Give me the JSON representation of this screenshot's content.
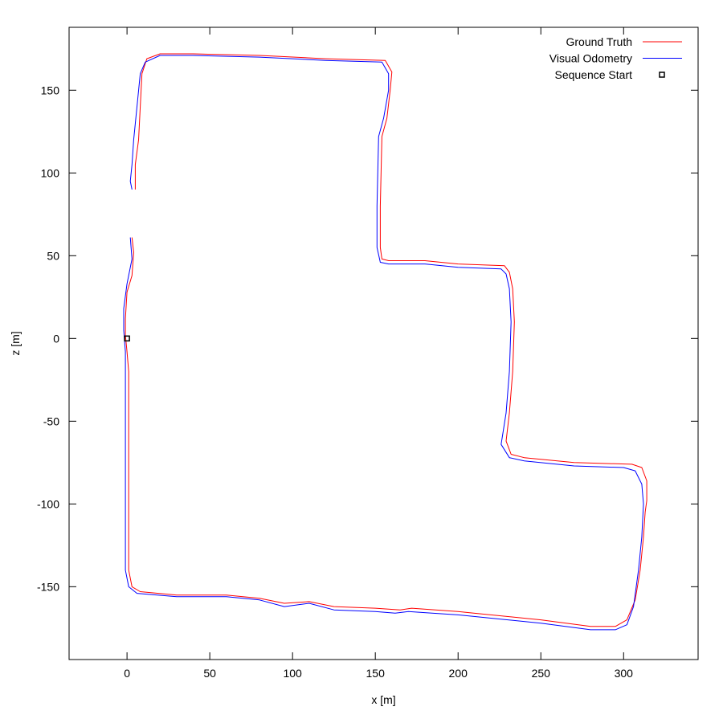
{
  "chart_data": {
    "type": "line",
    "title": "",
    "xlabel": "x [m]",
    "ylabel": "z [m]",
    "xlim": [
      -35,
      345
    ],
    "ylim": [
      -194,
      188
    ],
    "x_ticks": [
      0,
      50,
      100,
      150,
      200,
      250,
      300
    ],
    "y_ticks": [
      -150,
      -100,
      -50,
      0,
      50,
      100,
      150
    ],
    "legend_position": "top-right",
    "series": [
      {
        "name": "Ground Truth",
        "color": "#ff0000",
        "points": [
          [
            3,
            61
          ],
          [
            4,
            52
          ],
          [
            3,
            38
          ],
          [
            0,
            28
          ],
          [
            -1,
            12
          ],
          [
            -1,
            2
          ],
          [
            0,
            -8
          ],
          [
            1,
            -20
          ],
          [
            1,
            -60
          ],
          [
            1,
            -100
          ],
          [
            1,
            -140
          ],
          [
            3,
            -150
          ],
          [
            8,
            -153
          ],
          [
            30,
            -155
          ],
          [
            60,
            -155
          ],
          [
            80,
            -157
          ],
          [
            95,
            -160
          ],
          [
            110,
            -159
          ],
          [
            125,
            -162
          ],
          [
            150,
            -163
          ],
          [
            165,
            -164
          ],
          [
            172,
            -163
          ],
          [
            200,
            -165
          ],
          [
            250,
            -170
          ],
          [
            280,
            -174
          ],
          [
            295,
            -174
          ],
          [
            302,
            -170
          ],
          [
            307,
            -158
          ],
          [
            310,
            -140
          ],
          [
            312,
            -120
          ],
          [
            313,
            -105
          ],
          [
            314,
            -98
          ],
          [
            314,
            -86
          ],
          [
            311,
            -78
          ],
          [
            305,
            -76
          ],
          [
            270,
            -75
          ],
          [
            240,
            -72
          ],
          [
            232,
            -70
          ],
          [
            229,
            -62
          ],
          [
            231,
            -45
          ],
          [
            233,
            -20
          ],
          [
            234,
            10
          ],
          [
            233,
            30
          ],
          [
            231,
            40
          ],
          [
            228,
            44
          ],
          [
            200,
            45
          ],
          [
            180,
            47
          ],
          [
            158,
            47
          ],
          [
            154,
            48
          ],
          [
            153,
            55
          ],
          [
            153,
            80
          ],
          [
            154,
            122
          ],
          [
            157,
            133
          ],
          [
            159,
            150
          ],
          [
            160,
            161
          ],
          [
            156,
            168
          ],
          [
            120,
            169
          ],
          [
            80,
            171
          ],
          [
            40,
            172
          ],
          [
            20,
            172
          ],
          [
            12,
            169
          ],
          [
            9,
            160
          ],
          [
            8,
            140
          ],
          [
            7,
            120
          ],
          [
            5,
            105
          ],
          [
            5,
            95
          ],
          [
            5,
            90
          ]
        ]
      },
      {
        "name": "Visual Odometry",
        "color": "#0000ff",
        "points": [
          [
            2,
            61
          ],
          [
            3,
            48
          ],
          [
            0,
            33
          ],
          [
            -2,
            18
          ],
          [
            -2,
            5
          ],
          [
            -1,
            -8
          ],
          [
            -1,
            -20
          ],
          [
            -1,
            -60
          ],
          [
            -1,
            -100
          ],
          [
            -1,
            -140
          ],
          [
            1,
            -150
          ],
          [
            6,
            -154
          ],
          [
            30,
            -156
          ],
          [
            60,
            -156
          ],
          [
            80,
            -158
          ],
          [
            95,
            -162
          ],
          [
            110,
            -160
          ],
          [
            125,
            -164
          ],
          [
            150,
            -165
          ],
          [
            162,
            -166
          ],
          [
            170,
            -165
          ],
          [
            200,
            -167
          ],
          [
            250,
            -172
          ],
          [
            280,
            -176
          ],
          [
            295,
            -176
          ],
          [
            302,
            -173
          ],
          [
            306,
            -162
          ],
          [
            309,
            -140
          ],
          [
            311,
            -120
          ],
          [
            312,
            -100
          ],
          [
            311,
            -88
          ],
          [
            307,
            -80
          ],
          [
            300,
            -78
          ],
          [
            270,
            -77
          ],
          [
            240,
            -74
          ],
          [
            231,
            -72
          ],
          [
            226,
            -64
          ],
          [
            229,
            -45
          ],
          [
            231,
            -20
          ],
          [
            232,
            10
          ],
          [
            231,
            30
          ],
          [
            229,
            39
          ],
          [
            226,
            42
          ],
          [
            200,
            43
          ],
          [
            180,
            45
          ],
          [
            158,
            45
          ],
          [
            153,
            46
          ],
          [
            151,
            55
          ],
          [
            151,
            80
          ],
          [
            152,
            122
          ],
          [
            155,
            133
          ],
          [
            158,
            150
          ],
          [
            158,
            160
          ],
          [
            154,
            167
          ],
          [
            120,
            168
          ],
          [
            80,
            170
          ],
          [
            40,
            171
          ],
          [
            20,
            171
          ],
          [
            11,
            167
          ],
          [
            8,
            160
          ],
          [
            6,
            140
          ],
          [
            4,
            120
          ],
          [
            3,
            105
          ],
          [
            2,
            95
          ],
          [
            3,
            90
          ]
        ]
      },
      {
        "name": "Sequence Start",
        "color": "#000000",
        "marker": "square",
        "points": [
          [
            0,
            0
          ]
        ]
      }
    ]
  }
}
